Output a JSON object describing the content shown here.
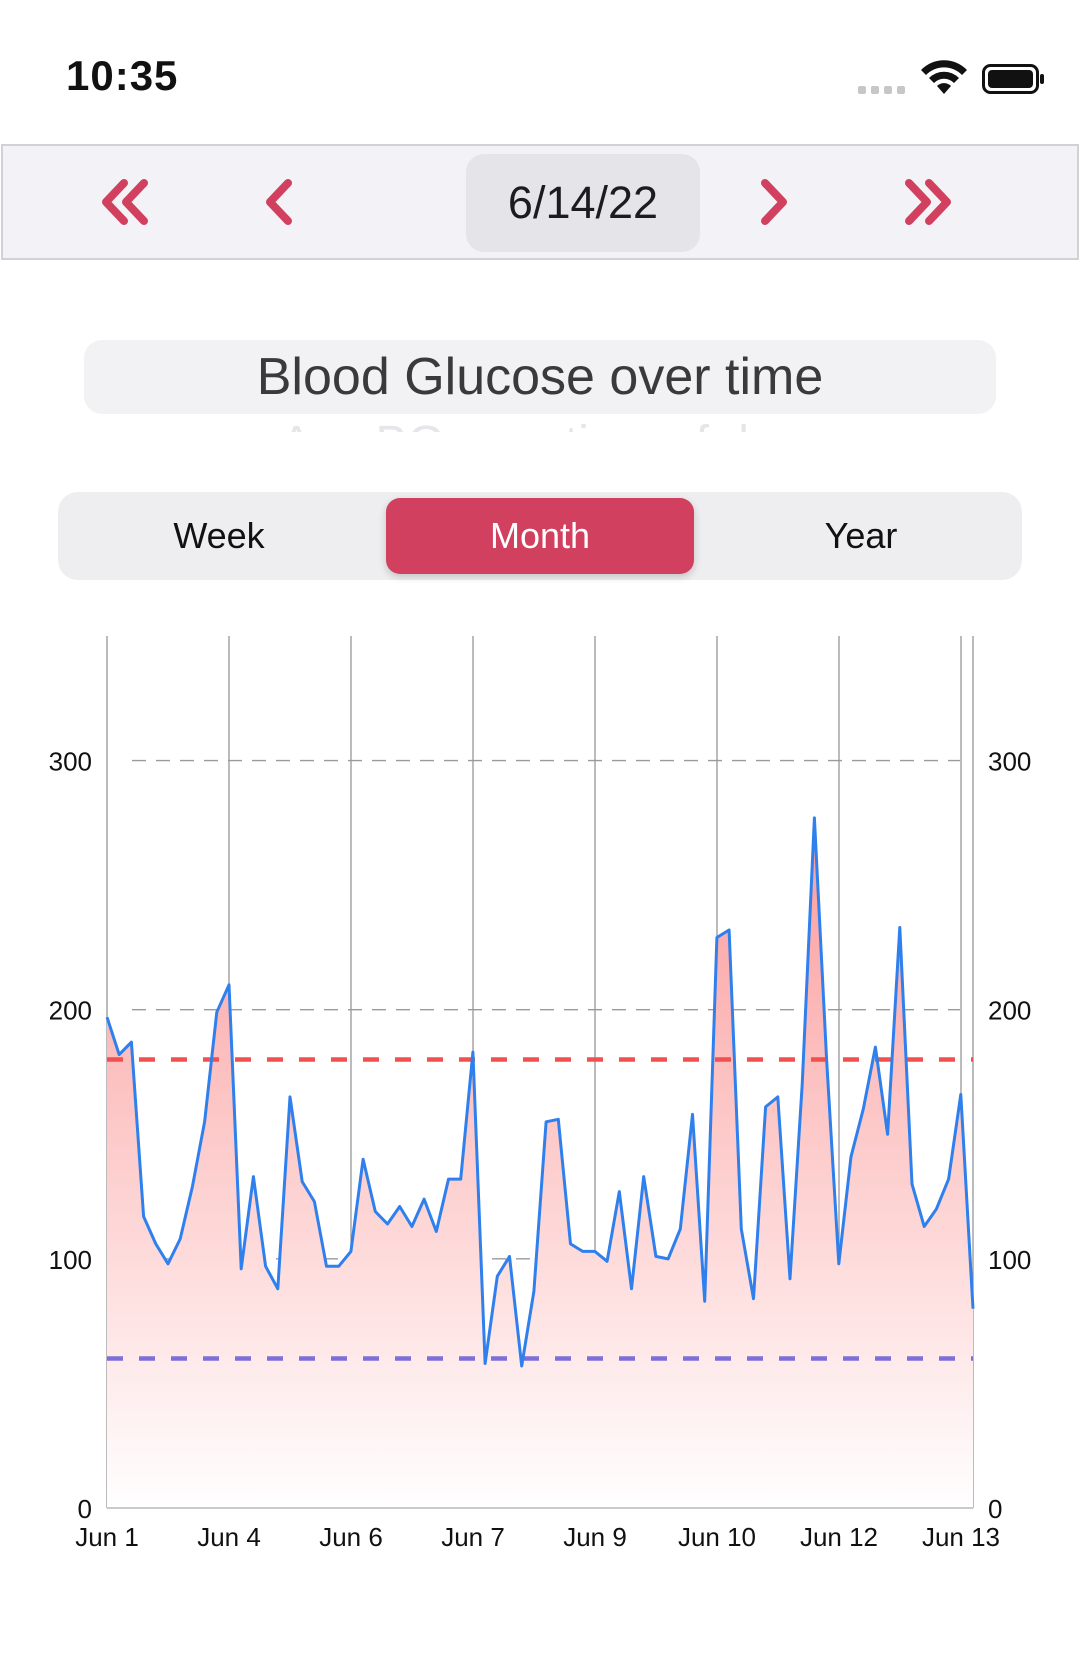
{
  "status_bar": {
    "time": "10:35"
  },
  "date_nav": {
    "date": "6/14/22",
    "icons": [
      "double-chevron-left-icon",
      "chevron-left-icon",
      "chevron-right-icon",
      "double-chevron-right-icon"
    ],
    "accent_color": "#d1405f"
  },
  "chart_title": "Blood Glucose over time",
  "chart_subtitle": "Avg BG over time of day",
  "segments": [
    {
      "label": "Week",
      "selected": false
    },
    {
      "label": "Month",
      "selected": true
    },
    {
      "label": "Year",
      "selected": false
    }
  ],
  "chart_data": {
    "type": "area",
    "title": "Blood Glucose over time",
    "x_tick_labels": [
      "Jun 1",
      "Jun 4",
      "Jun 6",
      "Jun 7",
      "Jun 9",
      "Jun 10",
      "Jun 12",
      "Jun 13"
    ],
    "y_ticks": [
      0,
      100,
      200,
      300
    ],
    "ylim": [
      0,
      350
    ],
    "high_threshold": 180,
    "low_threshold": 60,
    "colors": {
      "line": "#2f80ed",
      "high": "#f0514e",
      "low": "#7d6fd8",
      "fill_top": "#fb9c9c"
    },
    "values": [
      197,
      182,
      187,
      117,
      106,
      98,
      108,
      129,
      155,
      199,
      210,
      96,
      133,
      97,
      88,
      165,
      131,
      123,
      97,
      97,
      103,
      140,
      119,
      114,
      121,
      113,
      124,
      111,
      132,
      132,
      183,
      58,
      93,
      101,
      57,
      87,
      155,
      156,
      106,
      103,
      103,
      99,
      127,
      88,
      133,
      101,
      100,
      112,
      158,
      83,
      229,
      232,
      112,
      84,
      161,
      165,
      92,
      170,
      277,
      180,
      98,
      141,
      160,
      185,
      150,
      233,
      130,
      113,
      120,
      132,
      166,
      80
    ]
  }
}
